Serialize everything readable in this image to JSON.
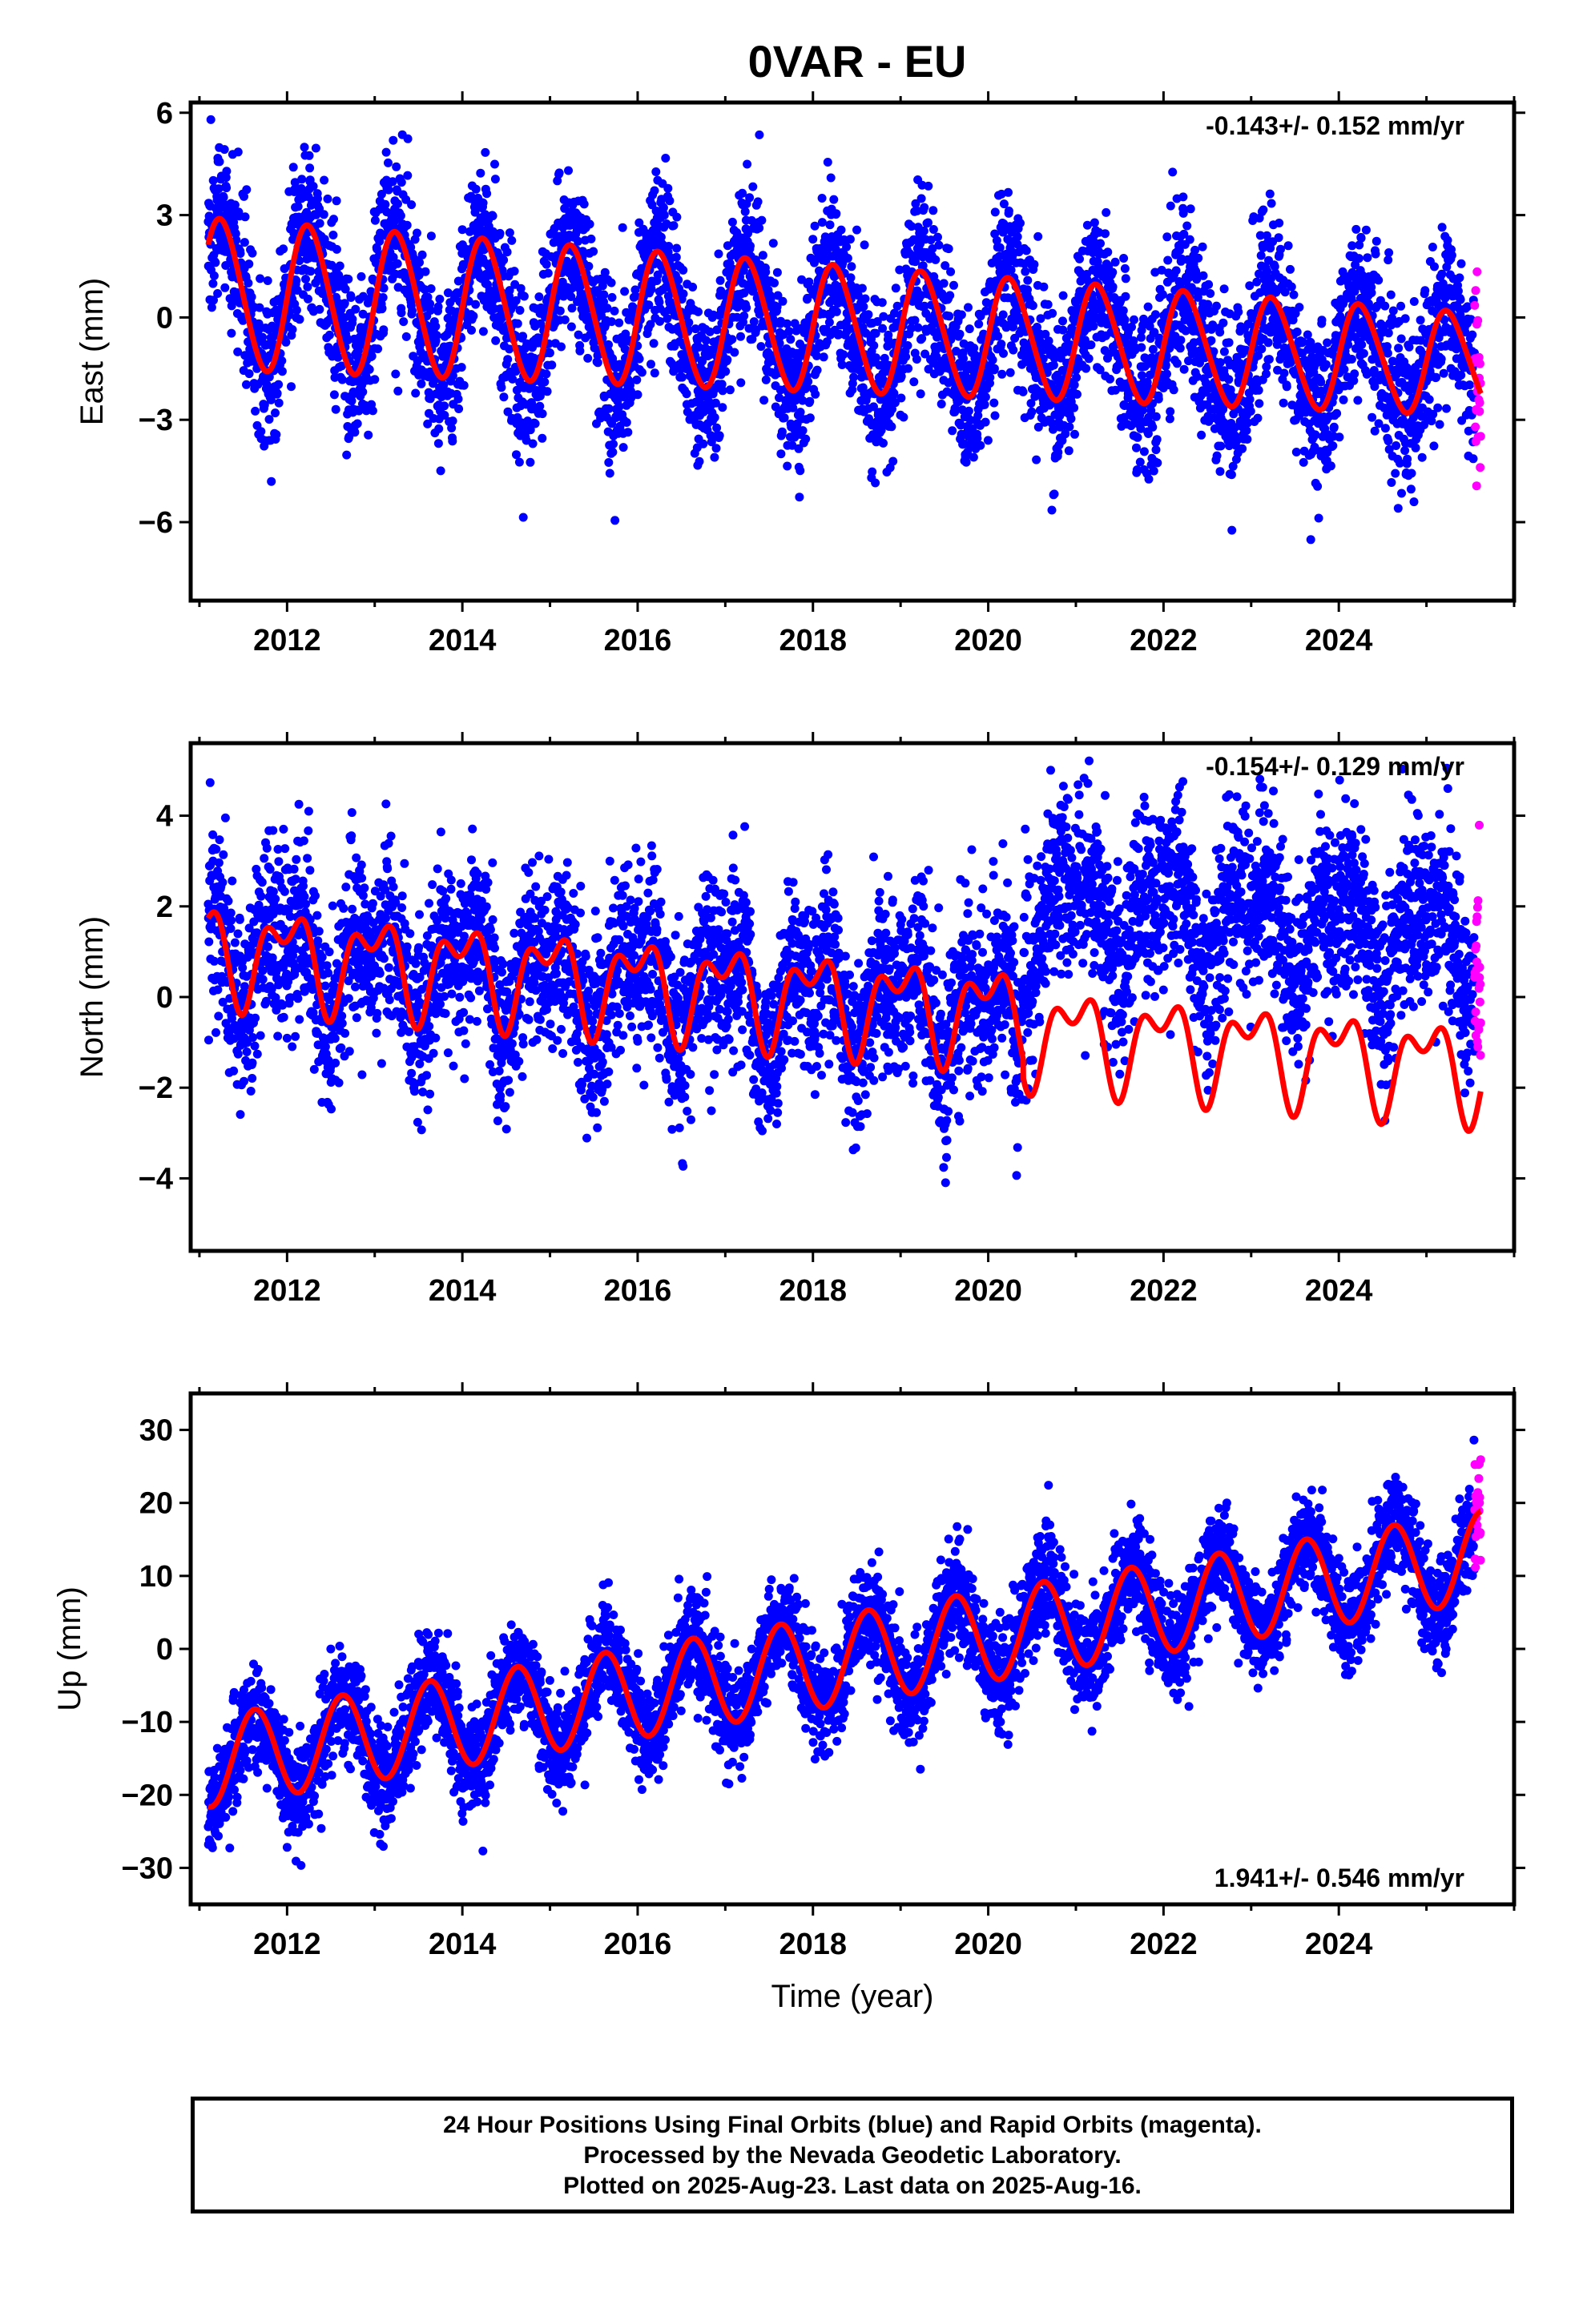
{
  "title": "0VAR - EU",
  "footer": {
    "line1": "24 Hour Positions Using Final Orbits (blue) and Rapid Orbits (magenta).",
    "line2": "Processed by the Nevada Geodetic Laboratory.",
    "line3": "Plotted on 2025-Aug-23. Last data on 2025-Aug-16."
  },
  "colors": {
    "final_orbits": "#0000ff",
    "rapid_orbits": "#ff00ff",
    "model": "#ff0000",
    "frame": "#000000"
  },
  "chart_data": [
    {
      "type": "scatter",
      "ylabel": "East (mm)",
      "rate_text": "-0.143+/- 0.152 mm/yr",
      "rate_position": "top-right",
      "xlim": [
        2010.9,
        2026.0
      ],
      "ylim": [
        -8.3,
        6.3
      ],
      "x_ticks": [
        2012,
        2014,
        2016,
        2018,
        2020,
        2022,
        2024
      ],
      "y_ticks": [
        -6,
        -3,
        0,
        3,
        6
      ],
      "y_tick_labels": [
        "−6",
        "−3",
        "0",
        "3",
        "6"
      ],
      "data_start": 2011.1,
      "data_end": 2025.62,
      "rapid_start": 2025.55,
      "grid": false,
      "model": {
        "offset": 0.7,
        "trend": -0.143,
        "annual_amp": 2.2,
        "annual_amp_change": -0.05,
        "annual_phase": 0.0,
        "semiannual_amp": 0.15,
        "semiannual_phase": 0.0
      },
      "noise_sd": 1.2,
      "steps": []
    },
    {
      "type": "scatter",
      "ylabel": "North (mm)",
      "rate_text": "-0.154+/- 0.129 mm/yr",
      "rate_position": "top-right",
      "xlim": [
        2010.9,
        2026.0
      ],
      "ylim": [
        -5.6,
        5.6
      ],
      "x_ticks": [
        2012,
        2014,
        2016,
        2018,
        2020,
        2022,
        2024
      ],
      "y_ticks": [
        -4,
        -2,
        0,
        2,
        4
      ],
      "y_tick_labels": [
        "−4",
        "−2",
        "0",
        "2",
        "4"
      ],
      "data_start": 2011.1,
      "data_end": 2025.62,
      "rapid_start": 2025.55,
      "grid": false,
      "model": {
        "offset": 1.05,
        "trend": -0.154,
        "annual_amp": 0.85,
        "annual_amp_change": 0.0,
        "annual_phase": -0.25,
        "semiannual_amp": 0.55,
        "semiannual_phase": 0.1
      },
      "noise_sd": 1.0,
      "steps": [
        {
          "x": 2020.4,
          "obs_shift": 2.4,
          "model_shift": -0.4
        }
      ]
    },
    {
      "type": "scatter",
      "ylabel": "Up (mm)",
      "xlabel": "Time (year)",
      "rate_text": "1.941+/- 0.546 mm/yr",
      "rate_position": "bottom-right",
      "xlim": [
        2010.9,
        2026.0
      ],
      "ylim": [
        -35,
        35
      ],
      "x_ticks": [
        2012,
        2014,
        2016,
        2018,
        2020,
        2022,
        2024
      ],
      "y_ticks": [
        -30,
        -20,
        -10,
        0,
        10,
        20,
        30
      ],
      "y_tick_labels": [
        "−30",
        "−20",
        "−10",
        "0",
        "10",
        "20",
        "30"
      ],
      "data_start": 2011.1,
      "data_end": 2025.62,
      "rapid_start": 2025.55,
      "grid": false,
      "model": {
        "offset": -15.5,
        "trend": 1.941,
        "annual_amp": 6.2,
        "annual_amp_change": 0.0,
        "annual_phase": 0.38,
        "semiannual_amp": 0.0,
        "semiannual_phase": 0.0
      },
      "noise_sd": 3.5,
      "steps": []
    }
  ]
}
